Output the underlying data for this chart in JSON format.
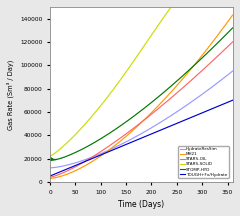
{
  "title": "",
  "xlabel": "Time (Days)",
  "ylabel": "Gas Rate (Sm³ / Day)",
  "xlim": [
    0,
    360
  ],
  "ylim": [
    0,
    150000
  ],
  "yticks": [
    0,
    20000,
    40000,
    60000,
    80000,
    100000,
    120000,
    140000
  ],
  "xticks": [
    0,
    50,
    100,
    150,
    200,
    250,
    300,
    350
  ],
  "legend": [
    {
      "label": "HydrateResSim",
      "color": "#9999ff"
    },
    {
      "label": "MH21",
      "color": "#ff9900"
    },
    {
      "label": "STARS-OIL",
      "color": "#ff6666"
    },
    {
      "label": "STARS-SOLID",
      "color": "#ccdd00"
    },
    {
      "label": "STOMP-HYD",
      "color": "#007700"
    },
    {
      "label": "TOUGH+Fx/Hydrate",
      "color": "#0000cc"
    }
  ],
  "background_color": "#e8e8e8",
  "plot_background": "#ffffff"
}
